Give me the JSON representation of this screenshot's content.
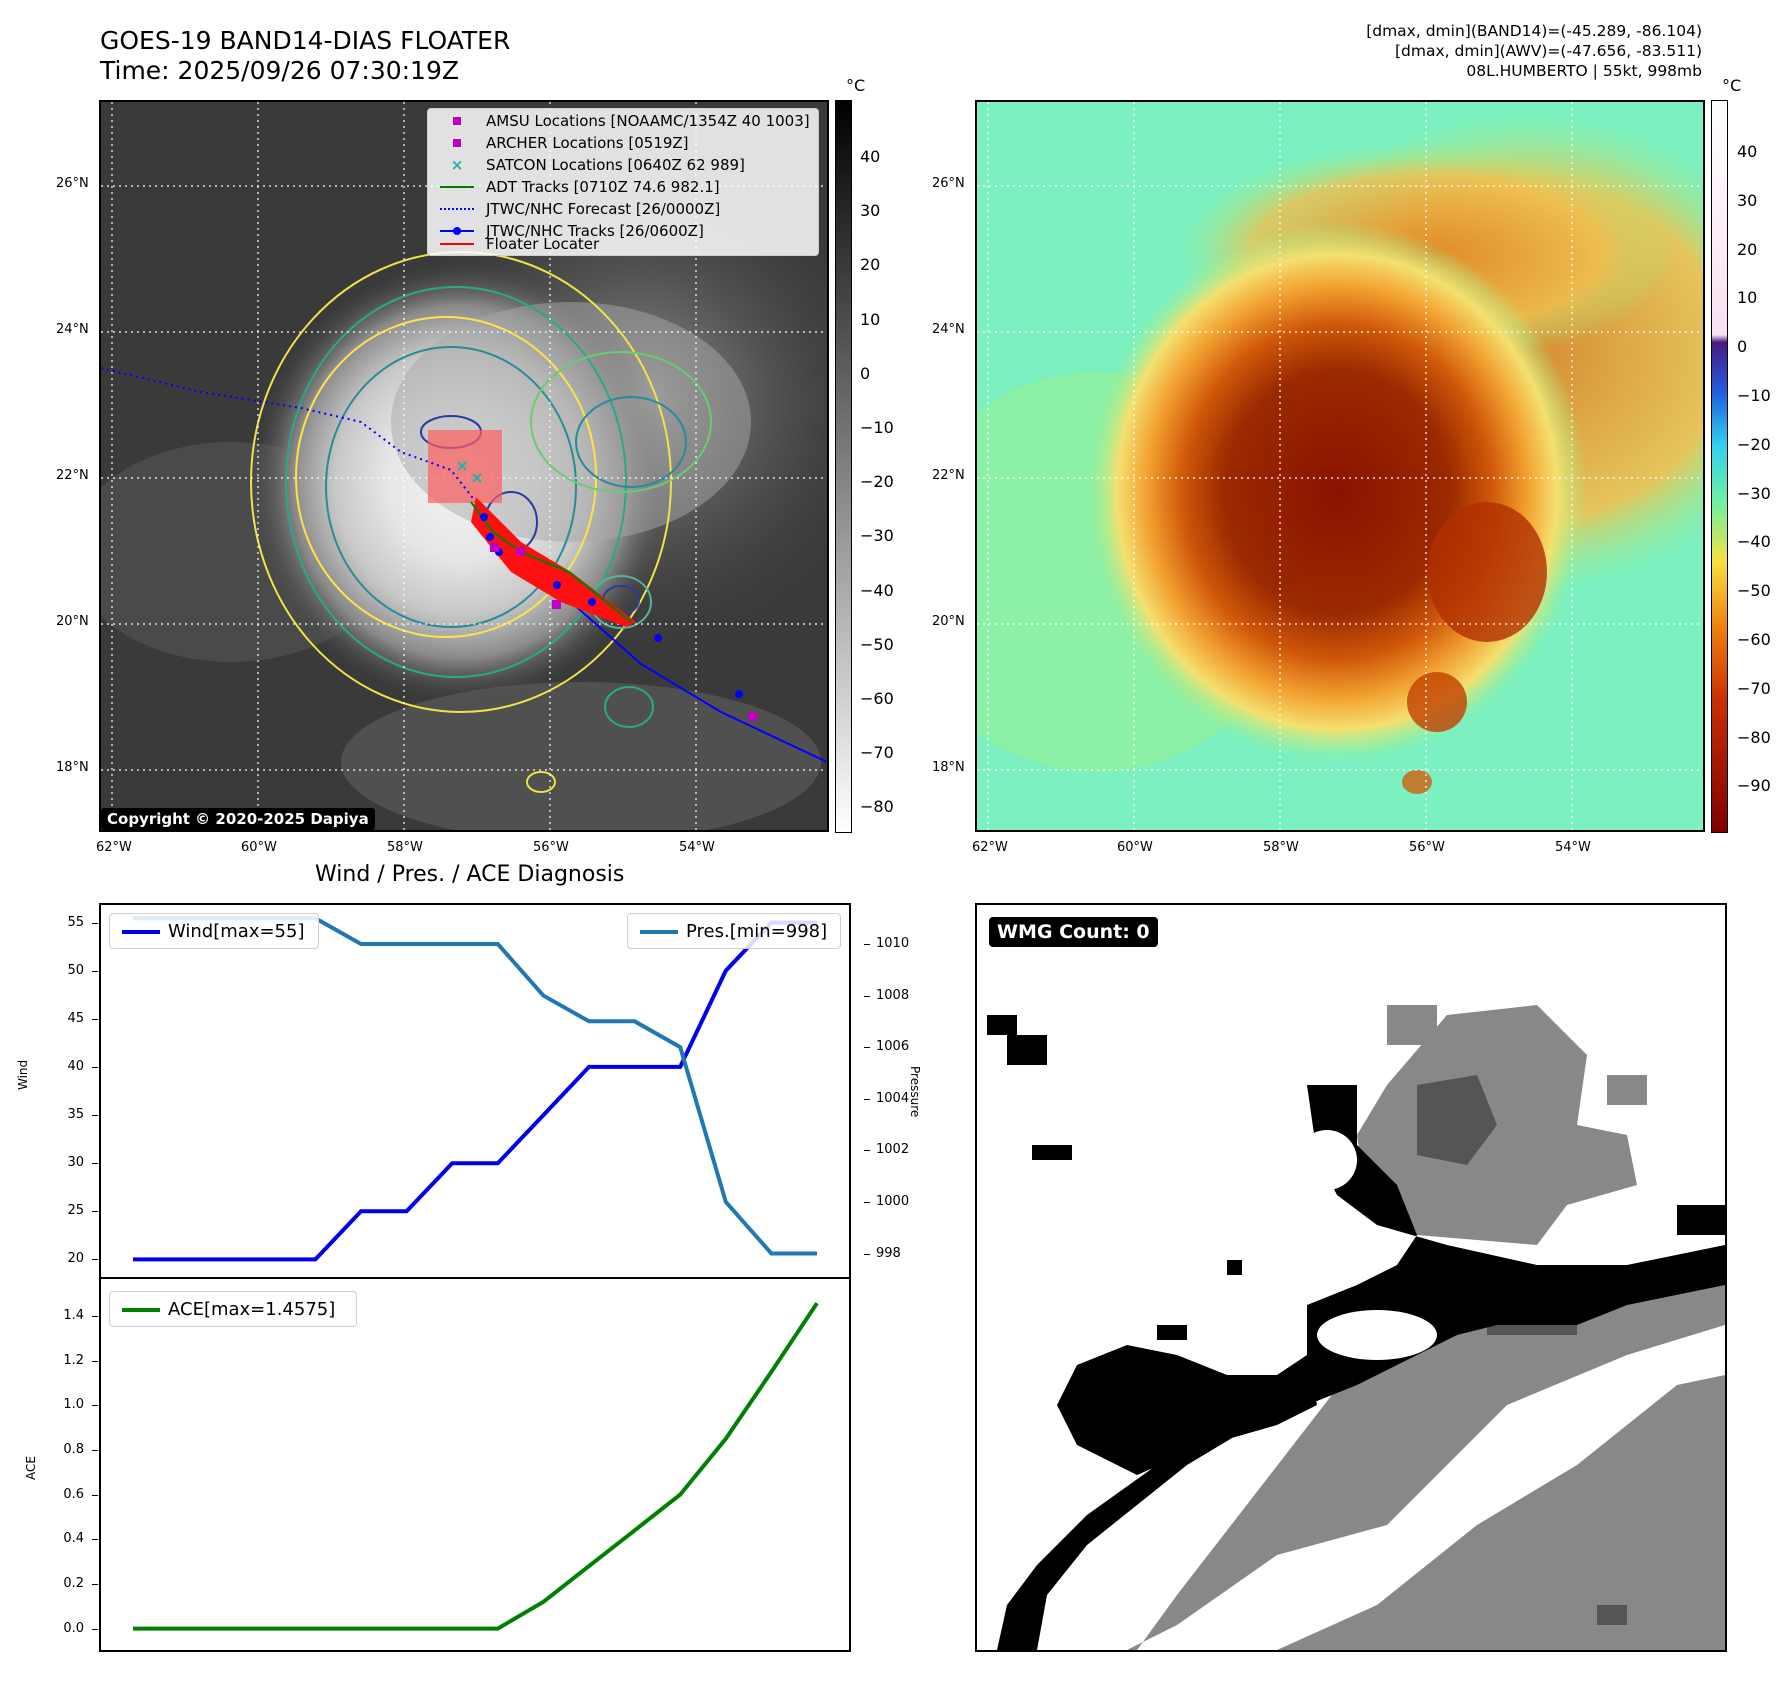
{
  "header": {
    "title_line1": "GOES-19 BAND14-DIAS FLOATER",
    "title_line2": "Time: 2025/09/26 07:30:19Z",
    "info_line1": "[dmax, dmin](BAND14)=(-45.289, -86.104)",
    "info_line2": "[dmax, dmin](AWV)=(-47.656, -83.511)",
    "info_line3": "08L.HUMBERTO | 55kt, 998mb"
  },
  "map": {
    "lat_labels": [
      "26°N",
      "24°N",
      "22°N",
      "20°N",
      "18°N"
    ],
    "lon_labels": [
      "62°W",
      "60°W",
      "58°W",
      "56°W",
      "54°W"
    ],
    "copyright": "Copyright © 2020-2025 Dapiya",
    "legend": [
      {
        "label": "AMSU Locations [NOAAMC/1354Z 40 1003]",
        "color": "#c000c0",
        "kind": "square"
      },
      {
        "label": "ARCHER Locations [0519Z]",
        "color": "#c000c0",
        "kind": "square"
      },
      {
        "label": "SATCON Locations [0640Z 62 989]",
        "color": "#20b0b0",
        "kind": "x"
      },
      {
        "label": "ADT Tracks [0710Z 74.6 982.1]",
        "color": "#008000",
        "kind": "line"
      },
      {
        "label": "JTWC/NHC Forecast [26/0000Z]",
        "color": "#0000ff",
        "kind": "dotted"
      },
      {
        "label": "JTWC/NHC Tracks [26/0600Z]",
        "color": "#0000ff",
        "kind": "line-dot"
      },
      {
        "label": "Floater Locater",
        "color": "#ff0000",
        "kind": "line"
      }
    ]
  },
  "colorbar_left": {
    "unit": "°C",
    "ticks": [
      "40",
      "30",
      "20",
      "10",
      "0",
      "−10",
      "−20",
      "−30",
      "−40",
      "−50",
      "−60",
      "−70",
      "−80"
    ]
  },
  "colorbar_right": {
    "unit": "°C",
    "ticks": [
      "40",
      "30",
      "20",
      "10",
      "0",
      "−10",
      "−20",
      "−30",
      "−40",
      "−50",
      "−60",
      "−70",
      "−80",
      "−90"
    ]
  },
  "diagnosis": {
    "title": "Wind / Pres. / ACE Diagnosis",
    "wind_label": "Wind",
    "pressure_label": "Pressure",
    "ace_label": "ACE",
    "wind_legend": "Wind[max=55]",
    "pres_legend": "Pres.[min=998]",
    "ace_legend": "ACE[max=1.4575]",
    "wind_ticks": [
      "55",
      "50",
      "45",
      "40",
      "35",
      "30",
      "25",
      "20"
    ],
    "pres_ticks": [
      "1010",
      "1008",
      "1006",
      "1004",
      "1002",
      "1000",
      "998"
    ],
    "ace_ticks": [
      "1.4",
      "1.2",
      "1.0",
      "0.8",
      "0.6",
      "0.4",
      "0.2",
      "0.0"
    ]
  },
  "wmg": {
    "badge": "WMG Count: 0"
  },
  "chart_data": [
    {
      "type": "line",
      "title": "Wind / Pres. / ACE Diagnosis",
      "ylabel": "Wind",
      "ylim": [
        19,
        56
      ],
      "x": [
        0,
        1,
        2,
        3,
        4,
        5,
        6,
        7,
        8,
        9,
        10,
        11,
        12,
        13,
        14,
        15
      ],
      "series": [
        {
          "name": "Wind[max=55]",
          "color": "#0000ee",
          "values": [
            20,
            20,
            20,
            20,
            20,
            25,
            25,
            30,
            30,
            35,
            40,
            40,
            40,
            50,
            55,
            55
          ]
        }
      ]
    },
    {
      "type": "line",
      "ylabel": "Pressure",
      "ylim": [
        997.4,
        1011.2
      ],
      "x": [
        0,
        1,
        2,
        3,
        4,
        5,
        6,
        7,
        8,
        9,
        10,
        11,
        12,
        13,
        14,
        15
      ],
      "series": [
        {
          "name": "Pres.[min=998]",
          "color": "#1f77b4",
          "values": [
            1011,
            1011,
            1011,
            1011,
            1011,
            1010,
            1010,
            1010,
            1010,
            1008,
            1007,
            1007,
            1006,
            1000,
            998,
            998
          ]
        }
      ]
    },
    {
      "type": "line",
      "ylabel": "ACE",
      "ylim": [
        -0.06,
        1.53
      ],
      "x": [
        0,
        1,
        2,
        3,
        4,
        5,
        6,
        7,
        8,
        9,
        10,
        11,
        12,
        13,
        14,
        15
      ],
      "series": [
        {
          "name": "ACE[max=1.4575]",
          "color": "#008000",
          "values": [
            0,
            0,
            0,
            0,
            0,
            0,
            0,
            0,
            0,
            0.12,
            0.28,
            0.44,
            0.6,
            0.85,
            1.15,
            1.4575
          ]
        }
      ]
    }
  ]
}
